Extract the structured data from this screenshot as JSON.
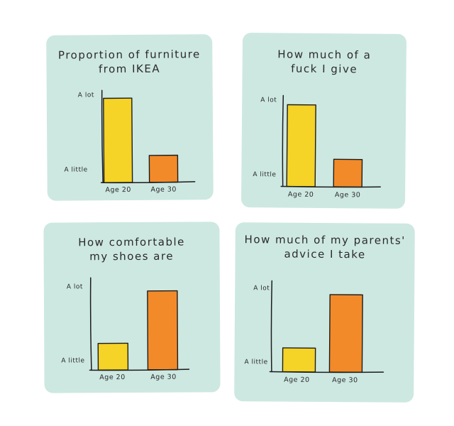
{
  "colors": {
    "panel_bg": "#cde8e1",
    "age20_bar": "#f5d327",
    "age30_bar": "#f28a2a",
    "ink": "#1c1c1c"
  },
  "chart_data": [
    {
      "type": "bar",
      "title": "Proportion of furniture\nfrom IKEA",
      "categories": [
        "Age 20",
        "Age 30"
      ],
      "values": [
        0.95,
        0.18
      ],
      "y_scale_labels": {
        "high": "A lot",
        "low": "A little"
      },
      "ylim": [
        0,
        1
      ]
    },
    {
      "type": "bar",
      "title": "How much of a\nfuck I give",
      "categories": [
        "Age 20",
        "Age 30"
      ],
      "values": [
        0.95,
        0.18
      ],
      "y_scale_labels": {
        "high": "A lot",
        "low": "A little"
      },
      "ylim": [
        0,
        1
      ]
    },
    {
      "type": "bar",
      "title": "How comfortable\nmy shoes are",
      "categories": [
        "Age 20",
        "Age 30"
      ],
      "values": [
        0.2,
        0.95
      ],
      "y_scale_labels": {
        "high": "A lot",
        "low": "A little"
      },
      "ylim": [
        0,
        1
      ]
    },
    {
      "type": "bar",
      "title": "How much of my parents'\nadvice I take",
      "categories": [
        "Age 20",
        "Age 30"
      ],
      "values": [
        0.18,
        0.95
      ],
      "y_scale_labels": {
        "high": "A lot",
        "low": "A little"
      },
      "ylim": [
        0,
        1
      ]
    }
  ]
}
